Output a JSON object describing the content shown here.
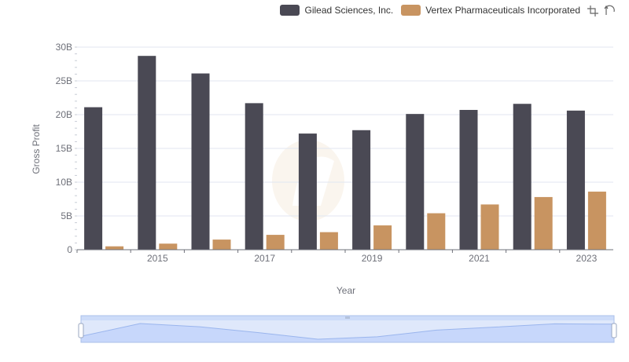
{
  "legend": {
    "series_0": "Gilead Sciences, Inc.",
    "series_1": "Vertex Pharmaceuticals Incorporated"
  },
  "toolbox": {
    "zoom_icon": "zoom-icon",
    "reset_icon": "zoom-reset-icon"
  },
  "chart_data": {
    "type": "bar",
    "xlabel": "Year",
    "ylabel": "Gross Profit",
    "ylim": [
      0,
      30000000000
    ],
    "y_ticks": [
      {
        "value": 0,
        "label": "0"
      },
      {
        "value": 5000000000,
        "label": "5B"
      },
      {
        "value": 10000000000,
        "label": "10B"
      },
      {
        "value": 15000000000,
        "label": "15B"
      },
      {
        "value": 20000000000,
        "label": "20B"
      },
      {
        "value": 25000000000,
        "label": "25B"
      },
      {
        "value": 30000000000,
        "label": "30B"
      }
    ],
    "categories": [
      "2014",
      "2015",
      "2016",
      "2017",
      "2018",
      "2019",
      "2020",
      "2021",
      "2022",
      "2023"
    ],
    "x_tick_labels": [
      "2015",
      "2017",
      "2019",
      "2021",
      "2023"
    ],
    "grid": true,
    "legend_position": "top-right",
    "series": [
      {
        "name": "Gilead Sciences, Inc.",
        "color": "#4a4954",
        "values": [
          21100000000,
          28700000000,
          26100000000,
          21700000000,
          17200000000,
          17700000000,
          20100000000,
          20700000000,
          21600000000,
          20600000000
        ]
      },
      {
        "name": "Vertex Pharmaceuticals Incorporated",
        "color": "#c89461",
        "values": [
          500000000,
          900000000,
          1500000000,
          2200000000,
          2600000000,
          3600000000,
          5400000000,
          6700000000,
          7800000000,
          8600000000
        ]
      }
    ]
  }
}
